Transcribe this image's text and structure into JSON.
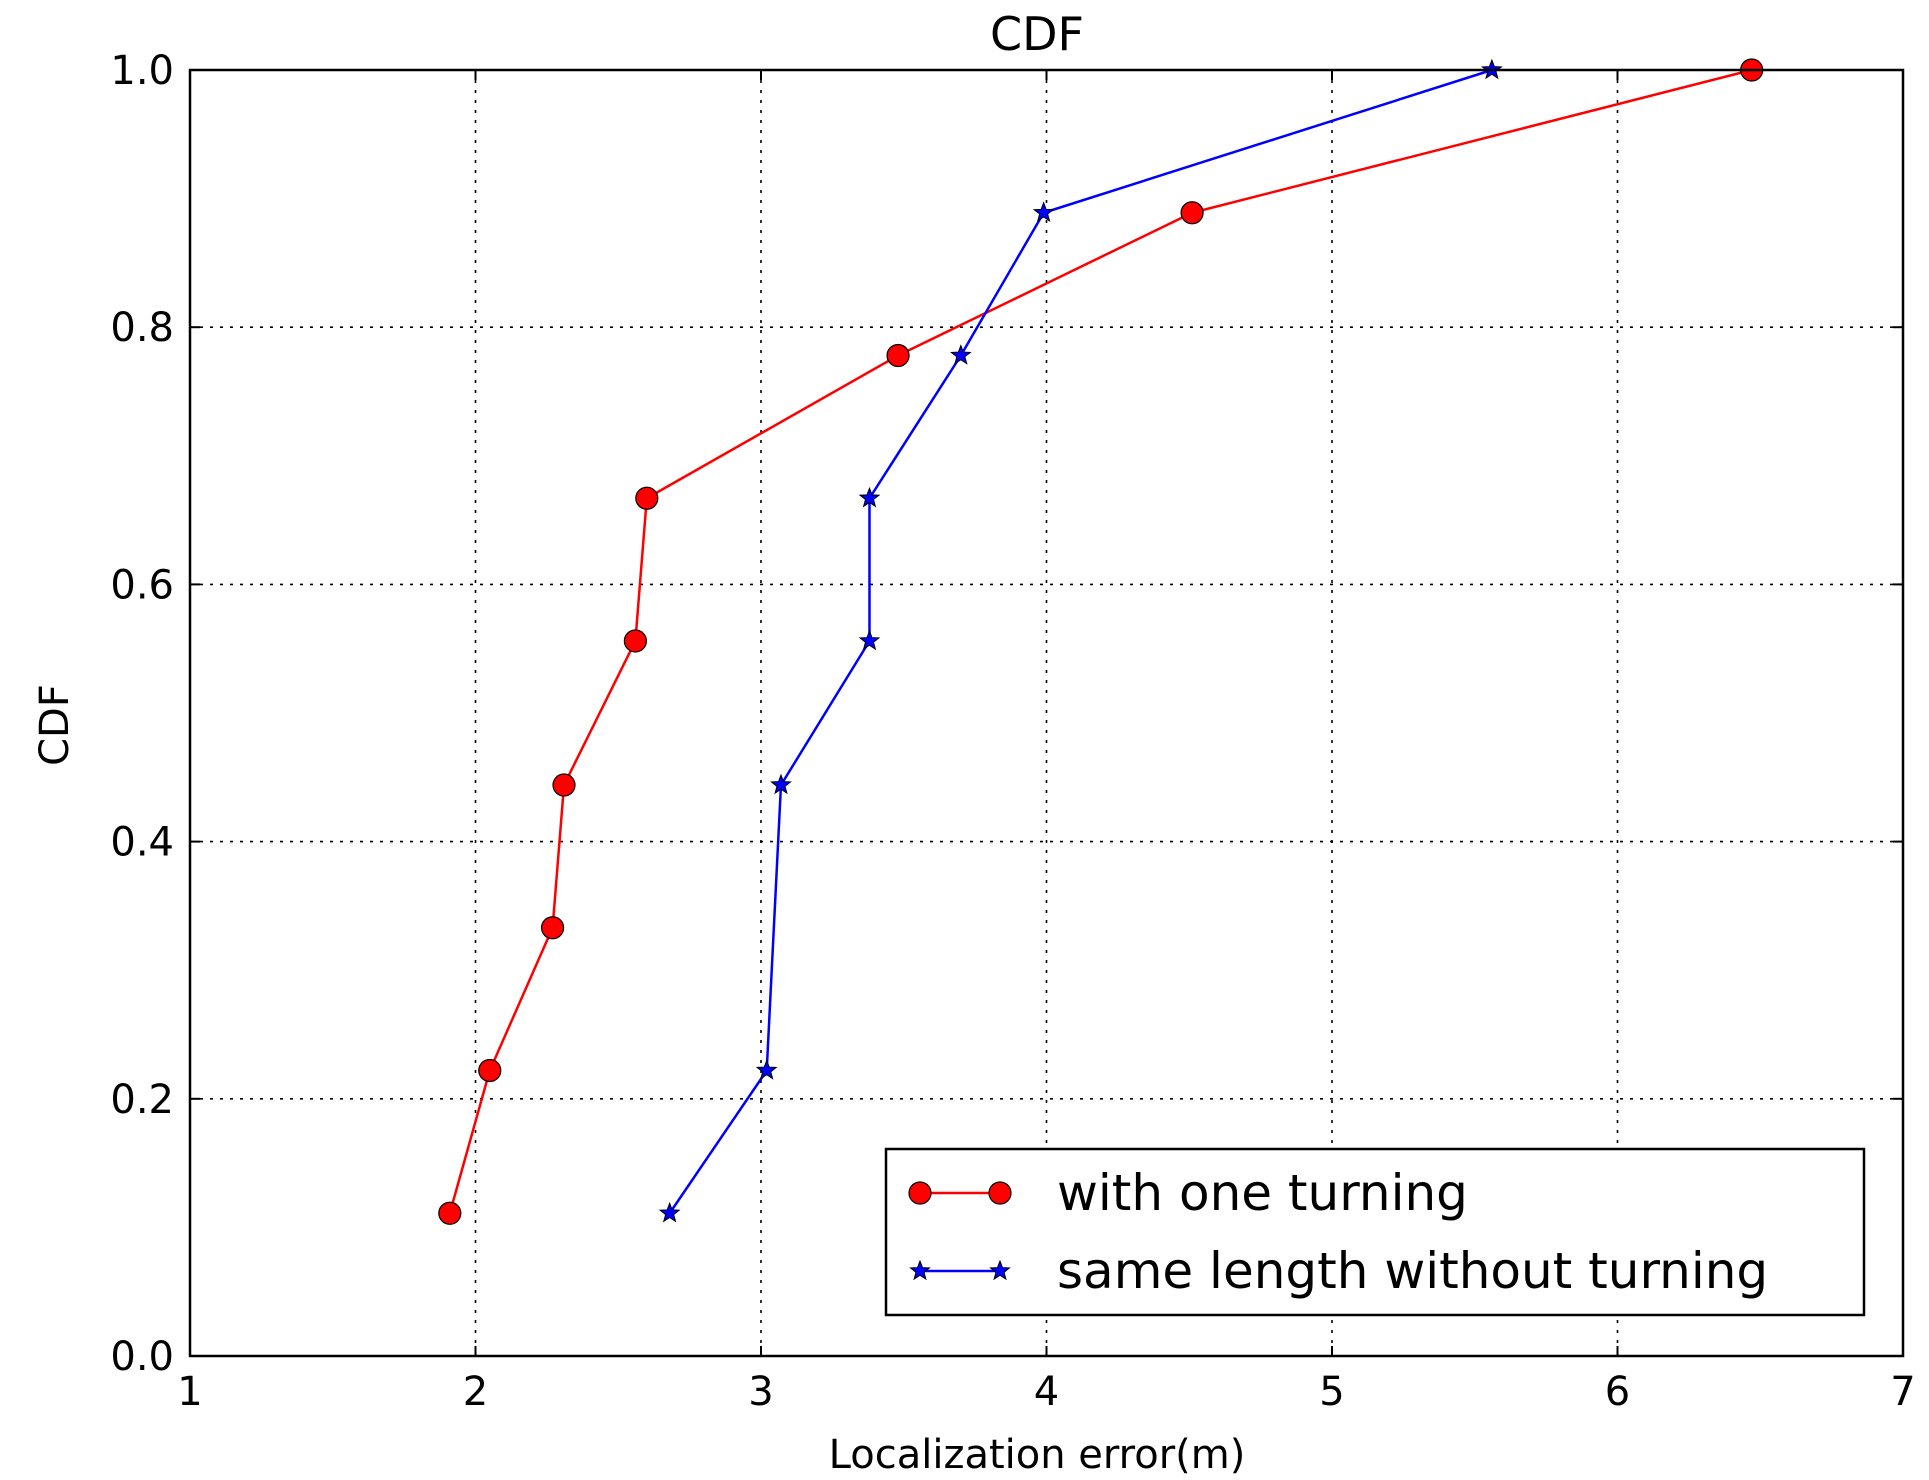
{
  "chart_data": {
    "type": "line",
    "title": "CDF",
    "xlabel": "Localization error(m)",
    "ylabel": "CDF",
    "xlim": [
      1,
      7
    ],
    "ylim": [
      0.0,
      1.0
    ],
    "xticks": [
      1,
      2,
      3,
      4,
      5,
      6,
      7
    ],
    "xtick_labels": [
      "1",
      "2",
      "3",
      "4",
      "5",
      "6",
      "7"
    ],
    "yticks": [
      0.0,
      0.2,
      0.4,
      0.6,
      0.8,
      1.0
    ],
    "ytick_labels": [
      "0.0",
      "0.2",
      "0.4",
      "0.6",
      "0.8",
      "1.0"
    ],
    "grid": true,
    "legend_position": "lower-right",
    "series": [
      {
        "name": "with one turning",
        "color": "#ff0000",
        "marker": "circle",
        "x": [
          1.91,
          2.05,
          2.27,
          2.31,
          2.56,
          2.6,
          3.48,
          4.51,
          6.47
        ],
        "y": [
          0.111,
          0.222,
          0.333,
          0.444,
          0.556,
          0.667,
          0.778,
          0.889,
          1.0
        ]
      },
      {
        "name": "same length without turning",
        "color": "#0000ff",
        "marker": "star",
        "x": [
          2.68,
          3.02,
          3.07,
          3.38,
          3.38,
          3.7,
          3.99,
          5.56
        ],
        "y": [
          0.111,
          0.222,
          0.444,
          0.556,
          0.667,
          0.778,
          0.889,
          1.0
        ]
      }
    ]
  }
}
